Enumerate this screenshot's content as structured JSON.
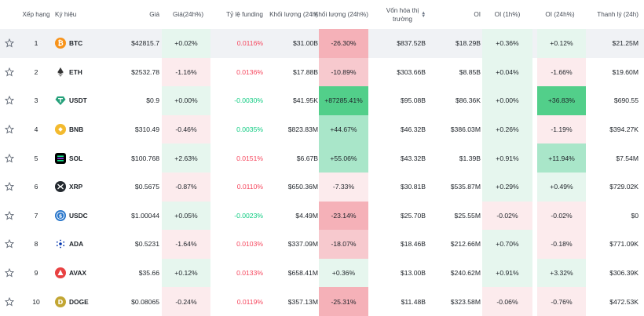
{
  "headers": {
    "rank": "Xếp hạng",
    "symbol": "Ký hiệu",
    "price": "Giá",
    "change": "Giá(24h%)",
    "funding": "Tỷ lệ funding",
    "volume": "Khối lượng (24h)",
    "volume_change": "Khối lượng (24h%)",
    "mcap_line1": "Vốn hóa thị",
    "mcap_line2": "trường",
    "oi": "OI",
    "oi_1h": "OI (1h%)",
    "oi_24h": "OI (24h%)",
    "liq": "Thanh lý (24h)"
  },
  "colors": {
    "green": "#0ecb81",
    "red": "#f6465d",
    "green_bg_light": "#e6f6ee",
    "green_bg_mid": "#a9e6c9",
    "green_bg_strong": "#52cf8a",
    "red_bg_light": "#fcebed",
    "red_bg_mid": "#f7c9ce",
    "red_bg_strong": "#f5b1b8"
  },
  "rows": [
    {
      "rank": "1",
      "symbol": "BTC",
      "icon": "btc-icon",
      "price": "$42815.7",
      "change": "+0.02%",
      "funding": "0.0116%",
      "volume": "$31.00B",
      "volume_change": "-26.30%",
      "mcap": "$837.52B",
      "oi": "$18.29B",
      "oi_1h": "+0.36%",
      "oi_24h": "+0.12%",
      "liq": "$21.25M"
    },
    {
      "rank": "2",
      "symbol": "ETH",
      "icon": "eth-icon",
      "price": "$2532.78",
      "change": "-1.16%",
      "funding": "0.0136%",
      "volume": "$17.88B",
      "volume_change": "-10.89%",
      "mcap": "$303.66B",
      "oi": "$8.85B",
      "oi_1h": "+0.04%",
      "oi_24h": "-1.66%",
      "liq": "$19.60M"
    },
    {
      "rank": "3",
      "symbol": "USDT",
      "icon": "usdt-icon",
      "price": "$0.9",
      "change": "+0.00%",
      "funding": "-0.0030%",
      "volume": "$41.95K",
      "volume_change": "+87285.41%",
      "mcap": "$95.08B",
      "oi": "$86.36K",
      "oi_1h": "+0.00%",
      "oi_24h": "+36.83%",
      "liq": "$690.55"
    },
    {
      "rank": "4",
      "symbol": "BNB",
      "icon": "bnb-icon",
      "price": "$310.49",
      "change": "-0.46%",
      "funding": "0.0035%",
      "volume": "$823.83M",
      "volume_change": "+44.67%",
      "mcap": "$46.32B",
      "oi": "$386.03M",
      "oi_1h": "+0.26%",
      "oi_24h": "-1.19%",
      "liq": "$394.27K"
    },
    {
      "rank": "5",
      "symbol": "SOL",
      "icon": "sol-icon",
      "price": "$100.768",
      "change": "+2.63%",
      "funding": "0.0151%",
      "volume": "$6.67B",
      "volume_change": "+55.06%",
      "mcap": "$43.32B",
      "oi": "$1.39B",
      "oi_1h": "+0.91%",
      "oi_24h": "+11.94%",
      "liq": "$7.54M"
    },
    {
      "rank": "6",
      "symbol": "XRP",
      "icon": "xrp-icon",
      "price": "$0.5675",
      "change": "-0.87%",
      "funding": "0.0110%",
      "volume": "$650.36M",
      "volume_change": "-7.33%",
      "mcap": "$30.81B",
      "oi": "$535.87M",
      "oi_1h": "+0.29%",
      "oi_24h": "+0.49%",
      "liq": "$729.02K"
    },
    {
      "rank": "7",
      "symbol": "USDC",
      "icon": "usdc-icon",
      "price": "$1.00044",
      "change": "+0.05%",
      "funding": "-0.0023%",
      "volume": "$4.49M",
      "volume_change": "-23.14%",
      "mcap": "$25.70B",
      "oi": "$25.55M",
      "oi_1h": "-0.02%",
      "oi_24h": "-0.02%",
      "liq": "$0"
    },
    {
      "rank": "8",
      "symbol": "ADA",
      "icon": "ada-icon",
      "price": "$0.5231",
      "change": "-1.64%",
      "funding": "0.0103%",
      "volume": "$337.09M",
      "volume_change": "-18.07%",
      "mcap": "$18.46B",
      "oi": "$212.66M",
      "oi_1h": "+0.70%",
      "oi_24h": "-0.18%",
      "liq": "$771.09K"
    },
    {
      "rank": "9",
      "symbol": "AVAX",
      "icon": "avax-icon",
      "price": "$35.66",
      "change": "+0.12%",
      "funding": "0.0133%",
      "volume": "$658.41M",
      "volume_change": "+0.36%",
      "mcap": "$13.00B",
      "oi": "$240.62M",
      "oi_1h": "+0.91%",
      "oi_24h": "+3.32%",
      "liq": "$306.39K"
    },
    {
      "rank": "10",
      "symbol": "DOGE",
      "icon": "doge-icon",
      "price": "$0.08065",
      "change": "-0.24%",
      "funding": "0.0119%",
      "volume": "$357.13M",
      "volume_change": "-25.31%",
      "mcap": "$11.48B",
      "oi": "$323.58M",
      "oi_1h": "-0.06%",
      "oi_24h": "-0.76%",
      "liq": "$472.53K"
    }
  ]
}
